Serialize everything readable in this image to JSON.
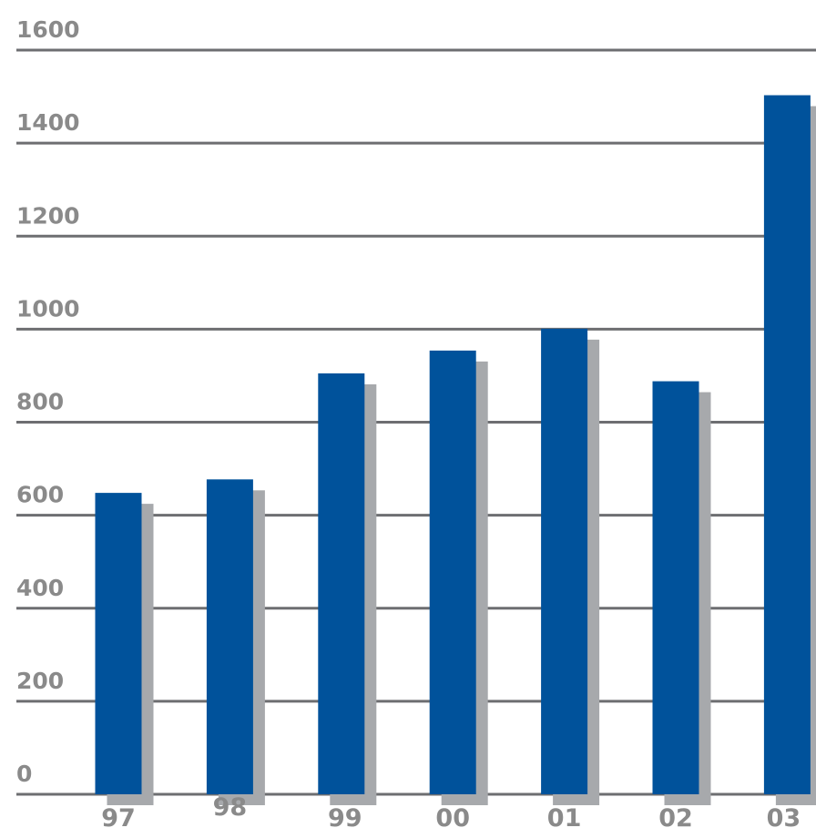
{
  "chart_data": {
    "type": "bar",
    "title": "",
    "xlabel": "",
    "ylabel": "",
    "categories": [
      "97",
      "98",
      "99",
      "00",
      "01",
      "02",
      "03"
    ],
    "series": [
      {
        "values": [
          648,
          677,
          905,
          954,
          1001,
          888,
          1503
        ]
      }
    ],
    "ylim": [
      0,
      1600
    ],
    "yticks": [
      0,
      200,
      400,
      600,
      800,
      1000,
      1200,
      1400,
      1600
    ],
    "ytick_labels": [
      "0",
      "200",
      "400",
      "600",
      "800",
      "1000",
      "1200",
      "1400",
      "1600"
    ],
    "grid": true,
    "legend": "none",
    "colors": {
      "bar": "#00529b",
      "shadow": "#a7a9ac",
      "grid": "#6d6e71",
      "label": "#8a8a8a"
    }
  }
}
